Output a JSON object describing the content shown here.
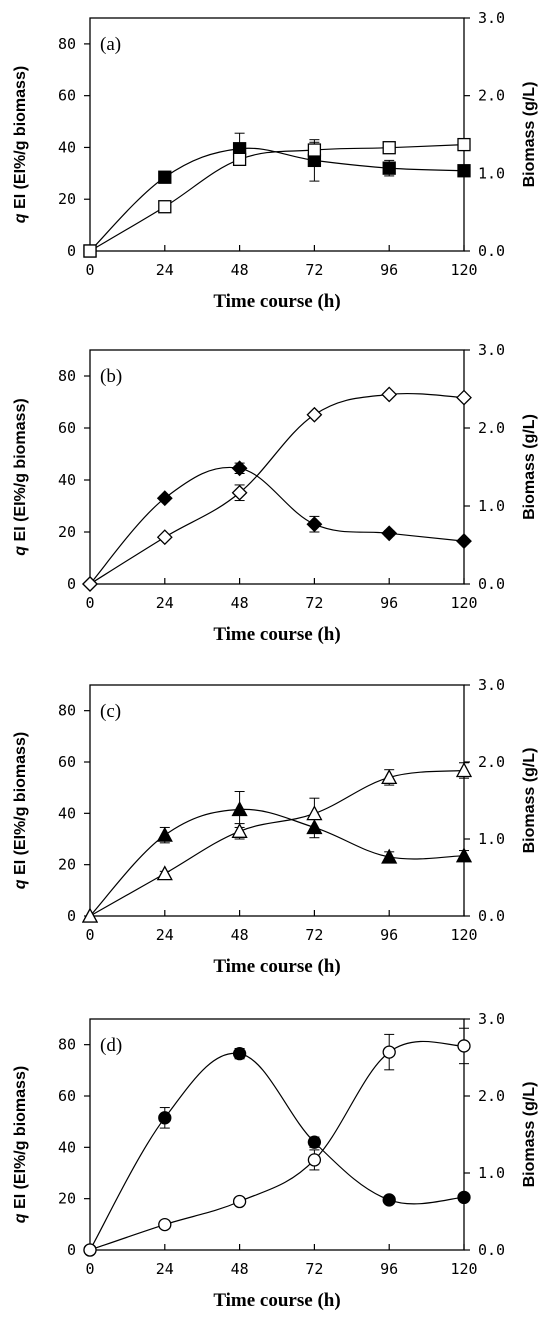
{
  "chart_data": [
    {
      "type": "line",
      "panel_label": "(a)",
      "xlabel": "Time course (h)",
      "ylabel_left": "q EI (EI%/g biomass)",
      "ylabel_right": "Biomass (g/L)",
      "x": [
        0,
        24,
        48,
        72,
        96,
        120
      ],
      "xlim": [
        0,
        120
      ],
      "ylim_left": [
        0,
        90
      ],
      "ylim_right": [
        0,
        3.0
      ],
      "x_ticks": [
        "0",
        "24",
        "48",
        "72",
        "96",
        "120"
      ],
      "y_left_ticks": [
        "0",
        "20",
        "40",
        "60",
        "80"
      ],
      "y_right_ticks": [
        "0.0",
        "1.0",
        "2.0",
        "3.0"
      ],
      "series": [
        {
          "marker": "square-filled",
          "axis": "left",
          "values": [
            0,
            28.5,
            39.5,
            35,
            32,
            31
          ],
          "errors": [
            0,
            1,
            6,
            8,
            3,
            1
          ]
        },
        {
          "marker": "square-open",
          "axis": "right",
          "values": [
            0,
            0.57,
            1.18,
            1.3,
            1.33,
            1.37
          ],
          "errors": [
            0,
            0.03,
            0.07,
            0.1,
            0.03,
            0.03
          ]
        }
      ]
    },
    {
      "type": "line",
      "panel_label": "(b)",
      "xlabel": "Time course (h)",
      "ylabel_left": "q EI (EI%/g biomass)",
      "ylabel_right": "Biomass (g/L)",
      "x": [
        0,
        24,
        48,
        72,
        96,
        120
      ],
      "xlim": [
        0,
        120
      ],
      "ylim_left": [
        0,
        90
      ],
      "ylim_right": [
        0,
        3.0
      ],
      "x_ticks": [
        "0",
        "24",
        "48",
        "72",
        "96",
        "120"
      ],
      "y_left_ticks": [
        "0",
        "20",
        "40",
        "60",
        "80"
      ],
      "y_right_ticks": [
        "0.0",
        "1.0",
        "2.0",
        "3.0"
      ],
      "series": [
        {
          "marker": "diamond-filled",
          "axis": "left",
          "values": [
            0,
            33,
            44.5,
            23,
            19.5,
            16.5
          ],
          "errors": [
            0,
            1,
            2,
            3,
            1,
            1
          ]
        },
        {
          "marker": "diamond-open",
          "axis": "right",
          "values": [
            0,
            0.6,
            1.17,
            2.17,
            2.43,
            2.39
          ],
          "errors": [
            0,
            0.03,
            0.1,
            0.03,
            0.03,
            0.03
          ]
        }
      ]
    },
    {
      "type": "line",
      "panel_label": "(c)",
      "xlabel": "Time course (h)",
      "ylabel_left": "q EI (EI%/g biomass)",
      "ylabel_right": "Biomass (g/L)",
      "x": [
        0,
        24,
        48,
        72,
        96,
        120
      ],
      "xlim": [
        0,
        120
      ],
      "ylim_left": [
        0,
        90
      ],
      "ylim_right": [
        0,
        3.0
      ],
      "x_ticks": [
        "0",
        "24",
        "48",
        "72",
        "96",
        "120"
      ],
      "y_left_ticks": [
        "0",
        "20",
        "40",
        "60",
        "80"
      ],
      "y_right_ticks": [
        "0.0",
        "1.0",
        "2.0",
        "3.0"
      ],
      "series": [
        {
          "marker": "triangle-filled",
          "axis": "left",
          "values": [
            0,
            31.5,
            41.5,
            34.5,
            23,
            23.5
          ],
          "errors": [
            0,
            3,
            7,
            4,
            2,
            2
          ]
        },
        {
          "marker": "triangle-open",
          "axis": "right",
          "values": [
            0,
            0.55,
            1.1,
            1.33,
            1.8,
            1.89
          ],
          "errors": [
            0,
            0.03,
            0.1,
            0.2,
            0.1,
            0.1
          ]
        }
      ]
    },
    {
      "type": "line",
      "panel_label": "(d)",
      "xlabel": "Time course (h)",
      "ylabel_left": "q EI (EI%/g biomass)",
      "ylabel_right": "Biomass (g/L)",
      "x": [
        0,
        24,
        48,
        72,
        96,
        120
      ],
      "xlim": [
        0,
        120
      ],
      "ylim_left": [
        0,
        90
      ],
      "ylim_right": [
        0,
        3.0
      ],
      "x_ticks": [
        "0",
        "24",
        "48",
        "72",
        "96",
        "120"
      ],
      "y_left_ticks": [
        "0",
        "20",
        "40",
        "60",
        "80"
      ],
      "y_right_ticks": [
        "0.0",
        "1.0",
        "2.0",
        "3.0"
      ],
      "series": [
        {
          "marker": "circle-filled",
          "axis": "left",
          "values": [
            0,
            51.5,
            76.5,
            42,
            19.5,
            20.5
          ],
          "errors": [
            0,
            4,
            2,
            2,
            1,
            1
          ]
        },
        {
          "marker": "circle-open",
          "axis": "right",
          "values": [
            0,
            0.33,
            0.63,
            1.17,
            2.57,
            2.65
          ],
          "errors": [
            0,
            0.03,
            0.03,
            0.13,
            0.23,
            0.23
          ]
        }
      ]
    }
  ]
}
